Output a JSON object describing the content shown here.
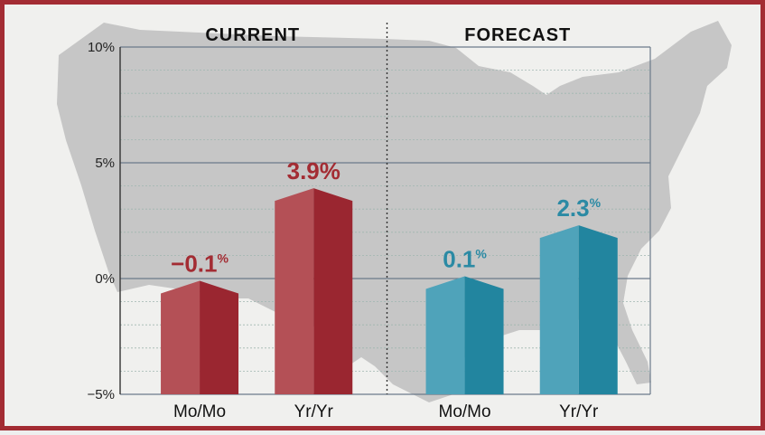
{
  "chart_data": {
    "type": "bar",
    "panels": [
      {
        "title": "CURRENT",
        "color_light": "#b45056",
        "color_dark": "#9a2630",
        "label_color": "#a32c33",
        "bars": [
          {
            "category": "Mo/Mo",
            "value": -0.1,
            "label_value": "−0.1",
            "label_unit": "%"
          },
          {
            "category": "Yr/Yr",
            "value": 3.9,
            "label_value": "3.9%",
            "label_unit": ""
          }
        ]
      },
      {
        "title": "FORECAST",
        "color_light": "#4fa3ba",
        "color_dark": "#22859f",
        "label_color": "#2b8aa4",
        "bars": [
          {
            "category": "Mo/Mo",
            "value": 0.1,
            "label_value": "0.1",
            "label_unit": "%"
          },
          {
            "category": "Yr/Yr",
            "value": 2.3,
            "label_value": "2.3",
            "label_unit": "%"
          }
        ]
      }
    ],
    "y_ticks": [
      {
        "value": 10,
        "label": "10%"
      },
      {
        "value": 5,
        "label": "5%"
      },
      {
        "value": 0,
        "label": "0%"
      },
      {
        "value": -5,
        "label": "−5%"
      }
    ],
    "ylim": [
      -5,
      10
    ],
    "grid": true,
    "background_map": "United States silhouette"
  }
}
